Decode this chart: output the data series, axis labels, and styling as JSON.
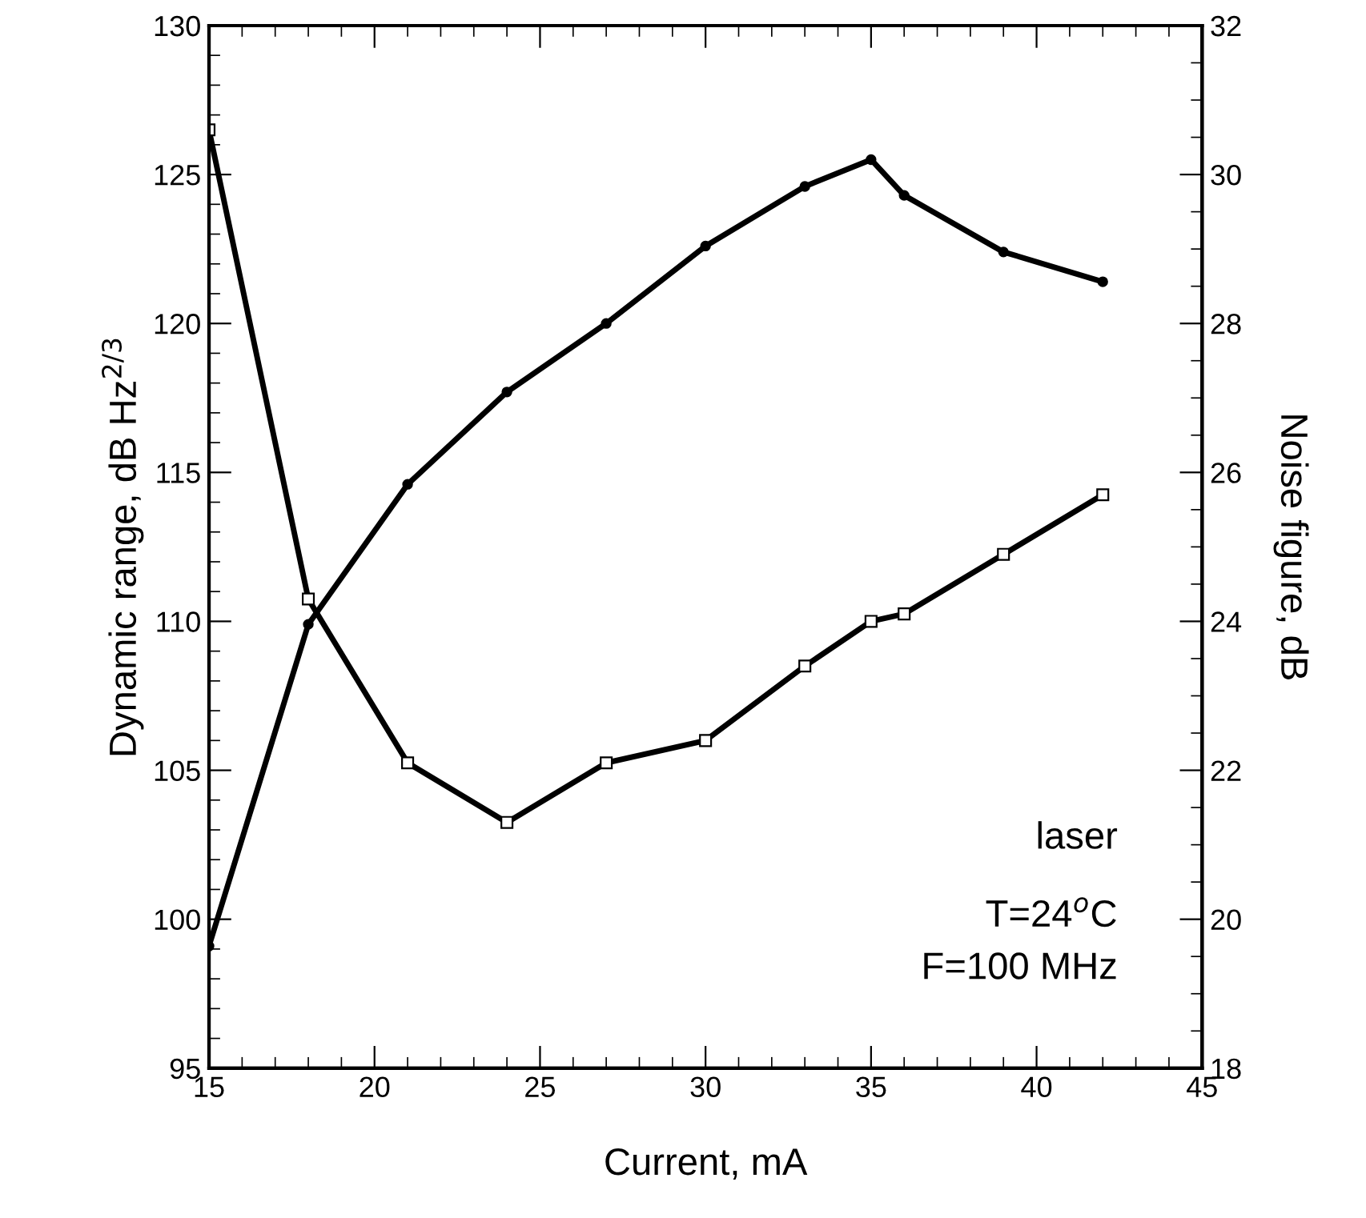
{
  "chart_data": {
    "type": "line",
    "xlabel": "Current, mA",
    "ylabel": "Dynamic range, dB Hz$^{2/3}$",
    "y2label": "Noise figure, dB",
    "x": [
      15,
      18,
      21,
      24,
      27,
      30,
      33,
      35,
      36,
      39,
      42
    ],
    "series": [
      {
        "color": "#000000",
        "marker": "circle",
        "values": [
          99.1,
          109.9,
          114.6,
          117.7,
          120.0,
          122.6,
          124.6,
          125.5,
          124.3,
          122.4,
          121.4
        ]
      },
      {
        "color": "#000000",
        "marker": "square",
        "axis": "y2",
        "values": [
          30.6,
          24.3,
          22.1,
          21.3,
          22.1,
          22.4,
          23.4,
          24.0,
          24.1,
          24.9,
          25.7
        ]
      }
    ],
    "xlim": [
      15,
      45
    ],
    "xticks": [
      15,
      20,
      25,
      30,
      35,
      40,
      45
    ],
    "ylim": [
      95,
      130
    ],
    "yticks": [
      95,
      100,
      105,
      110,
      115,
      120,
      125,
      130
    ],
    "y2lim": [
      18,
      32
    ],
    "y2ticks": [
      18,
      20,
      22,
      24,
      26,
      28,
      30,
      32
    ],
    "grid": false,
    "legend": false,
    "line_style": "solid",
    "annotations": [
      "laser",
      "T=24$^{o}$C",
      "F=100 MHz"
    ]
  }
}
